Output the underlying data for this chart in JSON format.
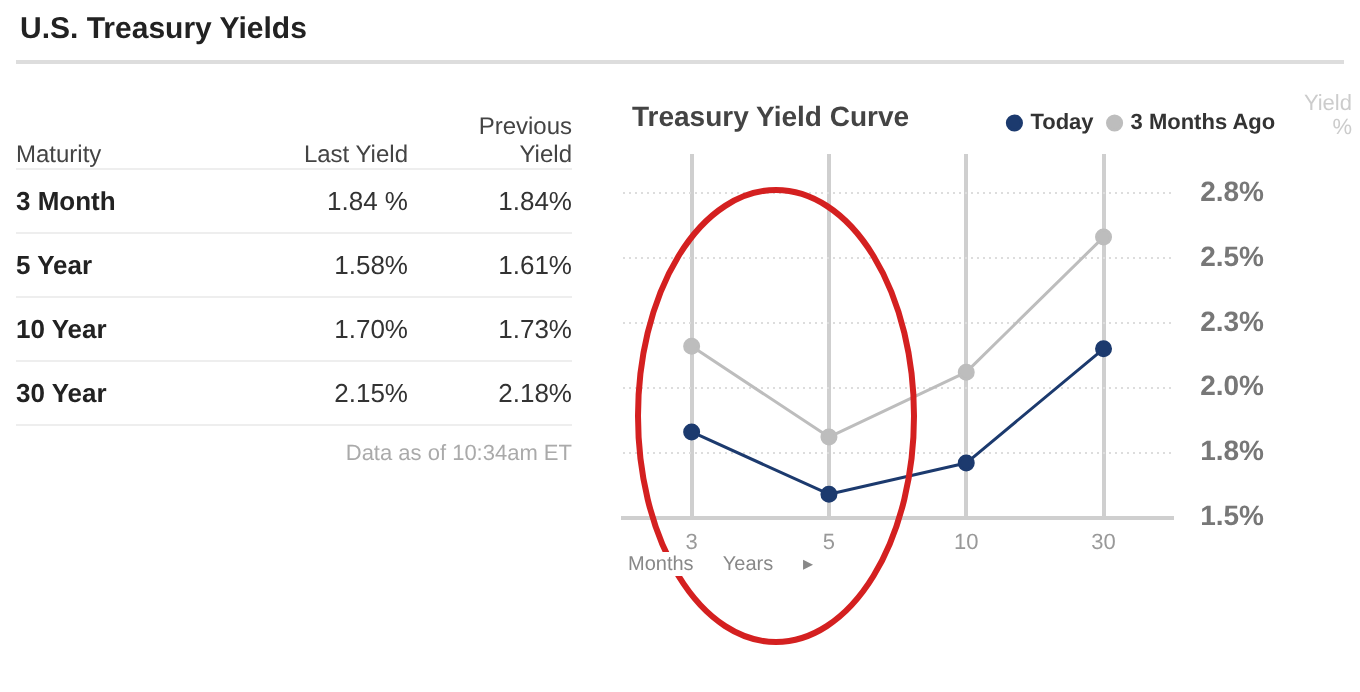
{
  "chart_data": [
    {
      "type": "other",
      "title": "U.S. Treasury Yields",
      "xlabel": "Maturity",
      "categories": [
        "3 Month",
        "5 Year",
        "10 Year",
        "30 Year"
      ],
      "series": [
        {
          "name": "Last Yield",
          "values": [
            1.84,
            1.58,
            1.7,
            2.15
          ],
          "value_labels": [
            "1.84 %",
            "1.58%",
            "1.70%",
            "2.15%"
          ]
        },
        {
          "name": "Previous Yield",
          "values": [
            1.84,
            1.61,
            1.73,
            2.18
          ],
          "value_labels": [
            "1.84%",
            "1.61%",
            "1.73%",
            "2.18%"
          ]
        }
      ],
      "annotations": [
        "Data as of 10:34am ET"
      ]
    },
    {
      "type": "line",
      "title": "Treasury Yield Curve",
      "categories": [
        "3",
        "5",
        "10",
        "30"
      ],
      "xlabel": "Months Years ▸",
      "ylabel": "Yield %",
      "series": [
        {
          "name": "Today",
          "color": "#1c3a6e",
          "values": [
            1.83,
            1.59,
            1.71,
            2.15
          ]
        },
        {
          "name": "3 Months Ago",
          "color": "#bdbdbd",
          "values": [
            2.16,
            1.81,
            2.06,
            2.58
          ]
        }
      ],
      "ylim": [
        1.5,
        2.9
      ],
      "yticks": [
        {
          "value": 1.5,
          "label": "1.5%"
        },
        {
          "value": 1.75,
          "label": "1.8%"
        },
        {
          "value": 2.0,
          "label": "2.0%"
        },
        {
          "value": 2.25,
          "label": "2.3%"
        },
        {
          "value": 2.5,
          "label": "2.5%"
        },
        {
          "value": 2.75,
          "label": "2.8%"
        }
      ],
      "grid": true,
      "legend": "top right",
      "marker": "circle",
      "line_style": "solid"
    }
  ]
}
